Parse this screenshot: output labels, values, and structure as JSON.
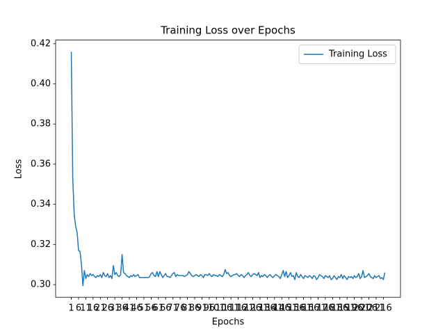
{
  "chart_data": {
    "type": "line",
    "title": "Training Loss over Epochs",
    "xlabel": "Epochs",
    "ylabel": "Loss",
    "x": [
      1,
      2,
      3,
      4,
      5,
      6,
      7,
      8,
      9,
      10,
      11,
      12,
      13,
      14,
      15,
      16,
      17,
      18,
      19,
      20,
      21,
      22,
      23,
      24,
      25,
      26,
      27,
      28,
      29,
      30,
      31,
      32,
      33,
      34,
      35,
      36,
      37,
      38,
      39,
      40,
      41,
      42,
      43,
      44,
      45,
      46,
      47,
      48,
      49,
      50,
      51,
      52,
      53,
      54,
      55,
      56,
      57,
      58,
      59,
      60,
      61,
      62,
      63,
      64,
      65,
      66,
      67,
      68,
      69,
      70,
      71,
      72,
      73,
      74,
      75,
      76,
      77,
      78,
      79,
      80,
      81,
      82,
      83,
      84,
      85,
      86,
      87,
      88,
      89,
      90,
      91,
      92,
      93,
      94,
      95,
      96,
      97,
      98,
      99,
      100,
      101,
      102,
      103,
      104,
      105,
      106,
      107,
      108,
      109,
      110,
      111,
      112,
      113,
      114,
      115,
      116,
      117,
      118,
      119,
      120,
      121,
      122,
      123,
      124,
      125,
      126,
      127,
      128,
      129,
      130,
      131,
      132,
      133,
      134,
      135,
      136,
      137,
      138,
      139,
      140,
      141,
      142,
      143,
      144,
      145,
      146,
      147,
      148,
      149,
      150,
      151,
      152,
      153,
      154,
      155,
      156,
      157,
      158,
      159,
      160,
      161,
      162,
      163,
      164,
      165,
      166,
      167,
      168,
      169,
      170,
      171,
      172,
      173,
      174,
      175,
      176,
      177,
      178,
      179,
      180,
      181,
      182,
      183,
      184,
      185,
      186,
      187,
      188,
      189,
      190,
      191,
      192,
      193,
      194,
      195,
      196,
      197,
      198,
      199,
      200,
      201,
      202,
      203,
      204,
      205,
      206,
      207,
      208,
      209,
      210,
      211,
      212,
      213,
      214,
      215,
      216,
      217
    ],
    "series": [
      {
        "name": "Training Loss",
        "color": "#1f77b4",
        "values": [
          0.416,
          0.353,
          0.335,
          0.329,
          0.326,
          0.317,
          0.3165,
          0.31,
          0.2995,
          0.307,
          0.303,
          0.305,
          0.304,
          0.3055,
          0.3045,
          0.305,
          0.304,
          0.3035,
          0.3045,
          0.304,
          0.305,
          0.3035,
          0.306,
          0.3045,
          0.304,
          0.3055,
          0.3035,
          0.3045,
          0.303,
          0.3095,
          0.305,
          0.306,
          0.3045,
          0.304,
          0.305,
          0.315,
          0.306,
          0.3055,
          0.3045,
          0.304,
          0.3035,
          0.3045,
          0.304,
          0.305,
          0.304,
          0.3045,
          0.305,
          0.3035,
          0.3035,
          0.3035,
          0.3035,
          0.3035,
          0.3035,
          0.3035,
          0.304,
          0.3055,
          0.306,
          0.3045,
          0.304,
          0.3065,
          0.304,
          0.3065,
          0.305,
          0.3035,
          0.3045,
          0.3055,
          0.304,
          0.304,
          0.3035,
          0.3045,
          0.3055,
          0.306,
          0.304,
          0.305,
          0.3045,
          0.3045,
          0.3045,
          0.3045,
          0.304,
          0.3045,
          0.305,
          0.3065,
          0.3055,
          0.3045,
          0.304,
          0.3045,
          0.305,
          0.3045,
          0.304,
          0.305,
          0.3045,
          0.3035,
          0.305,
          0.305,
          0.3045,
          0.3055,
          0.3045,
          0.304,
          0.305,
          0.3045,
          0.3045,
          0.304,
          0.305,
          0.3045,
          0.304,
          0.305,
          0.3075,
          0.3055,
          0.306,
          0.3045,
          0.304,
          0.3045,
          0.305,
          0.305,
          0.3055,
          0.3045,
          0.304,
          0.305,
          0.3045,
          0.3035,
          0.3045,
          0.305,
          0.306,
          0.3045,
          0.304,
          0.305,
          0.3055,
          0.305,
          0.3045,
          0.306,
          0.3035,
          0.3045,
          0.304,
          0.305,
          0.3045,
          0.3035,
          0.3045,
          0.305,
          0.304,
          0.3035,
          0.3045,
          0.305,
          0.3045,
          0.304,
          0.303,
          0.305,
          0.307,
          0.304,
          0.3065,
          0.3035,
          0.3045,
          0.306,
          0.304,
          0.3045,
          0.3025,
          0.306,
          0.304,
          0.3035,
          0.305,
          0.304,
          0.303,
          0.3045,
          0.304,
          0.3035,
          0.3045,
          0.304,
          0.303,
          0.3045,
          0.304,
          0.3025,
          0.3035,
          0.305,
          0.3045,
          0.304,
          0.303,
          0.3045,
          0.304,
          0.3035,
          0.3045,
          0.3025,
          0.303,
          0.3045,
          0.3035,
          0.3025,
          0.304,
          0.3035,
          0.305,
          0.303,
          0.3045,
          0.3035,
          0.3025,
          0.304,
          0.3035,
          0.304,
          0.303,
          0.3045,
          0.3035,
          0.304,
          0.3055,
          0.303,
          0.304,
          0.307,
          0.3035,
          0.304,
          0.3045,
          0.3055,
          0.304,
          0.3035,
          0.303,
          0.3045,
          0.3035,
          0.304,
          0.3045,
          0.303,
          0.3035,
          0.3025,
          0.306
        ]
      }
    ],
    "xlim": [
      -9.8,
      227.8
    ],
    "xticks": [
      1,
      6,
      11,
      16,
      21,
      26,
      31,
      36,
      41,
      46,
      51,
      56,
      61,
      66,
      71,
      76,
      81,
      86,
      91,
      96,
      101,
      106,
      111,
      116,
      121,
      126,
      131,
      136,
      141,
      146,
      151,
      156,
      161,
      166,
      171,
      176,
      181,
      186,
      191,
      196,
      201,
      206,
      211,
      216
    ],
    "ylim": [
      0.2937,
      0.4218
    ],
    "yticks": [
      {
        "value": 0.3,
        "label": "0.30"
      },
      0.32,
      0.34,
      0.36,
      0.38,
      {
        "value": 0.4,
        "label": "0.40"
      },
      0.42
    ],
    "legend": "upper right",
    "grid": false
  }
}
